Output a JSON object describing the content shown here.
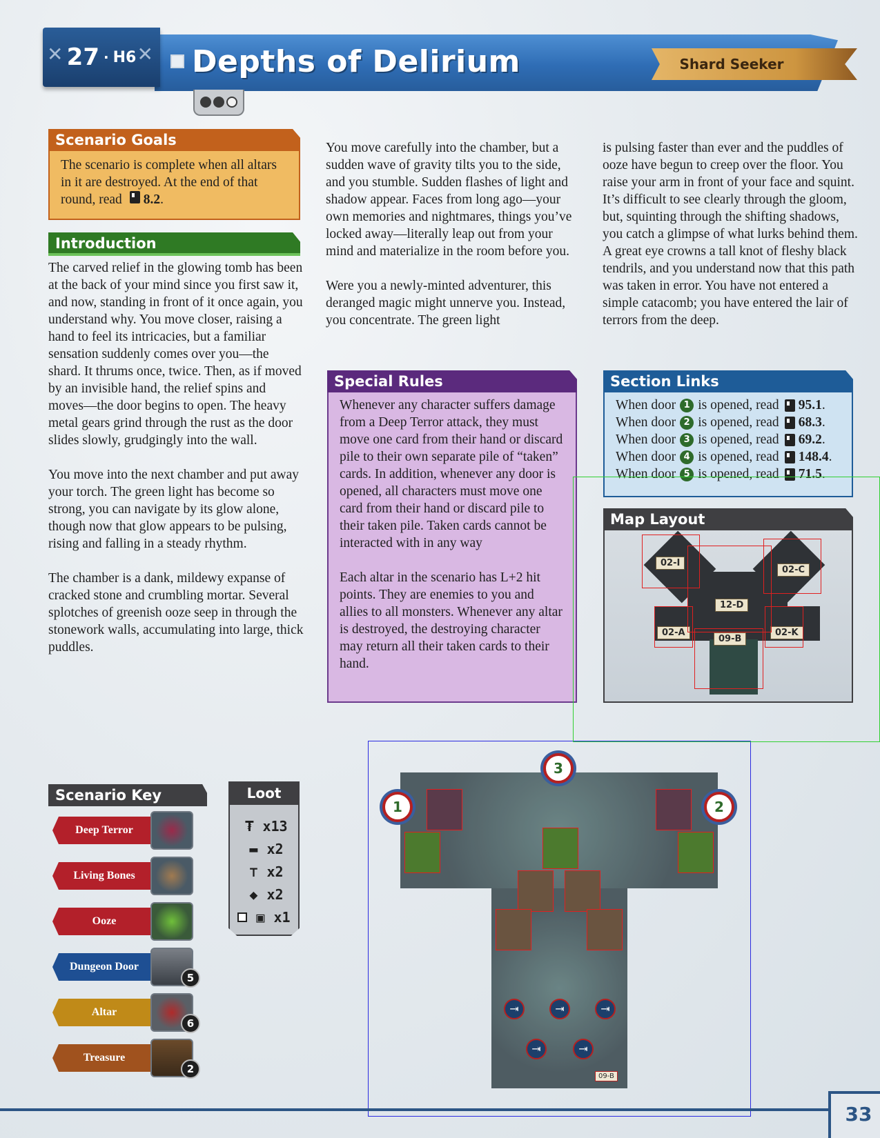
{
  "header": {
    "scenario_number": "27",
    "separator": "·",
    "scenario_code": "H6",
    "title": "Depths of Delirium",
    "quest_label": "Shard Seeker",
    "difficulty": {
      "filled": 2,
      "total": 3
    }
  },
  "goals": {
    "heading": "Scenario Goals",
    "text": "The scenario is complete when all altars in it are destroyed. At the end of that round, read",
    "section": "8.2",
    "period": "."
  },
  "introduction": {
    "heading": "Introduction",
    "paragraphs": [
      "The carved relief in the glowing tomb has been at the back of your mind since you first saw it, and now, standing in front of it once again, you understand why. You move closer, raising a hand to feel its intricacies, but a familiar sensation suddenly comes over you—the shard. It thrums once, twice. Then, as if moved by an invisible hand, the relief spins and moves—the door begins to open. The heavy metal gears grind through the rust as the door slides slowly, grudgingly into the wall.",
      "You move into the next chamber and put away your torch. The green light has become so strong, you can navigate by its glow alone, though now that glow appears to be pulsing, rising and falling in a steady rhythm.",
      "The chamber is a dank, mildewy expanse of cracked stone and crumbling mortar. Several splotches of greenish ooze seep in through the stonework walls, accumulating into large, thick puddles."
    ],
    "column2": [
      "You move carefully into the chamber, but a sudden wave of gravity tilts you to the side, and you stumble. Sudden flashes of light and shadow appear. Faces from long ago—your own memories and nightmares, things you’ve locked away—literally leap out from your mind and materialize in the room before you.",
      "Were you a newly-minted adventurer, this deranged magic might unnerve you. Instead, you concentrate. The green light"
    ],
    "column3": [
      "is pulsing faster than ever and the puddles of ooze have begun to creep over the floor. You raise your arm in front of your face and squint. It’s difficult to see clearly through the gloom, but, squinting through the shifting shadows, you catch a glimpse of what lurks behind them. A great eye crowns a tall knot of fleshy black tendrils, and you understand now that this path was taken in error. You have not entered a simple catacomb; you have entered the lair of terrors from the deep."
    ]
  },
  "special_rules": {
    "heading": "Special Rules",
    "paragraphs": [
      "Whenever any character suffers damage from a Deep Terror attack, they must move one card from their hand or discard pile to their own separate pile of “taken” cards. In addition, whenever any door is opened, all characters must move one card from their hand or discard pile to their taken pile. Taken cards cannot be interacted with in any way",
      "Each altar in the scenario has L+2 hit points. They are enemies to you and allies to all monsters. Whenever any altar is destroyed, the destroying character may return all their taken cards to their hand."
    ]
  },
  "section_links": {
    "heading": "Section Links",
    "prefix": "When door",
    "middle": "is opened, read",
    "links": [
      {
        "door": "1",
        "section": "95.1"
      },
      {
        "door": "2",
        "section": "68.3"
      },
      {
        "door": "3",
        "section": "69.2"
      },
      {
        "door": "4",
        "section": "148.4"
      },
      {
        "door": "5",
        "section": "71.5"
      }
    ],
    "period": "."
  },
  "map_layout": {
    "heading": "Map Layout",
    "tiles": [
      "02-I",
      "02-C",
      "12-D",
      "02-A",
      "09-B",
      "02-K"
    ]
  },
  "scenario_key": {
    "heading": "Scenario Key",
    "items": [
      {
        "label": "Deep Terror",
        "color": "#b3202a",
        "count": ""
      },
      {
        "label": "Living Bones",
        "color": "#b3202a",
        "count": ""
      },
      {
        "label": "Ooze",
        "color": "#b3202a",
        "count": ""
      },
      {
        "label": "Dungeon Door",
        "color": "#1e4f93",
        "count": "5"
      },
      {
        "label": "Altar",
        "color": "#c08a18",
        "count": "6"
      },
      {
        "label": "Treasure",
        "color": "#a0521e",
        "count": "2"
      }
    ]
  },
  "loot": {
    "heading": "Loot",
    "items": [
      {
        "icon": "coin-icon",
        "glyph": "₮",
        "count": "x13"
      },
      {
        "icon": "lumber-icon",
        "glyph": "▬",
        "count": "x2"
      },
      {
        "icon": "anvil-icon",
        "glyph": "⊤",
        "count": "x2"
      },
      {
        "icon": "hide-icon",
        "glyph": "◆",
        "count": "x2"
      },
      {
        "icon": "treasure-chest-icon",
        "glyph": "▣",
        "count": "x1"
      }
    ]
  },
  "main_map": {
    "doors": [
      "1",
      "2",
      "3"
    ],
    "tile_tag": "09-B"
  },
  "footer": {
    "page_number": "33"
  }
}
